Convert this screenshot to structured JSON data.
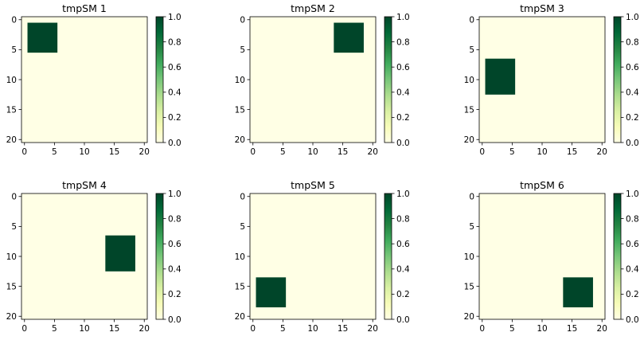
{
  "chart_data": [
    {
      "type": "heatmap",
      "title": "tmpSM 1",
      "grid_size": 21,
      "xlim": [
        -0.5,
        20.5
      ],
      "ylim": [
        20.5,
        -0.5
      ],
      "xticks": [
        0,
        5,
        10,
        15,
        20
      ],
      "yticks": [
        0,
        5,
        10,
        15,
        20
      ],
      "block": {
        "col_start": 1,
        "col_end": 5,
        "row_start": 1,
        "row_end": 5,
        "value": 1
      },
      "background_value": 0,
      "colorbar": {
        "range": [
          0,
          1
        ],
        "ticks": [
          "0.0",
          "0.2",
          "0.4",
          "0.6",
          "0.8",
          "1.0"
        ],
        "colormap": "YlGn"
      }
    },
    {
      "type": "heatmap",
      "title": "tmpSM 2",
      "grid_size": 21,
      "xlim": [
        -0.5,
        20.5
      ],
      "ylim": [
        20.5,
        -0.5
      ],
      "xticks": [
        0,
        5,
        10,
        15,
        20
      ],
      "yticks": [
        0,
        5,
        10,
        15,
        20
      ],
      "block": {
        "col_start": 14,
        "col_end": 18,
        "row_start": 1,
        "row_end": 5,
        "value": 1
      },
      "background_value": 0,
      "colorbar": {
        "range": [
          0,
          1
        ],
        "ticks": [
          "0.0",
          "0.2",
          "0.4",
          "0.6",
          "0.8",
          "1.0"
        ],
        "colormap": "YlGn"
      }
    },
    {
      "type": "heatmap",
      "title": "tmpSM 3",
      "grid_size": 21,
      "xlim": [
        -0.5,
        20.5
      ],
      "ylim": [
        20.5,
        -0.5
      ],
      "xticks": [
        0,
        5,
        10,
        15,
        20
      ],
      "yticks": [
        0,
        5,
        10,
        15,
        20
      ],
      "block": {
        "col_start": 1,
        "col_end": 5,
        "row_start": 7,
        "row_end": 12,
        "value": 1
      },
      "background_value": 0,
      "colorbar": {
        "range": [
          0,
          1
        ],
        "ticks": [
          "0.0",
          "0.2",
          "0.4",
          "0.6",
          "0.8",
          "1.0"
        ],
        "colormap": "YlGn"
      }
    },
    {
      "type": "heatmap",
      "title": "tmpSM 4",
      "grid_size": 21,
      "xlim": [
        -0.5,
        20.5
      ],
      "ylim": [
        20.5,
        -0.5
      ],
      "xticks": [
        0,
        5,
        10,
        15,
        20
      ],
      "yticks": [
        0,
        5,
        10,
        15,
        20
      ],
      "block": {
        "col_start": 14,
        "col_end": 18,
        "row_start": 7,
        "row_end": 12,
        "value": 1
      },
      "background_value": 0,
      "colorbar": {
        "range": [
          0,
          1
        ],
        "ticks": [
          "0.0",
          "0.2",
          "0.4",
          "0.6",
          "0.8",
          "1.0"
        ],
        "colormap": "YlGn"
      }
    },
    {
      "type": "heatmap",
      "title": "tmpSM 5",
      "grid_size": 21,
      "xlim": [
        -0.5,
        20.5
      ],
      "ylim": [
        20.5,
        -0.5
      ],
      "xticks": [
        0,
        5,
        10,
        15,
        20
      ],
      "yticks": [
        0,
        5,
        10,
        15,
        20
      ],
      "block": {
        "col_start": 1,
        "col_end": 5,
        "row_start": 14,
        "row_end": 18,
        "value": 1
      },
      "background_value": 0,
      "colorbar": {
        "range": [
          0,
          1
        ],
        "ticks": [
          "0.0",
          "0.2",
          "0.4",
          "0.6",
          "0.8",
          "1.0"
        ],
        "colormap": "YlGn"
      }
    },
    {
      "type": "heatmap",
      "title": "tmpSM 6",
      "grid_size": 21,
      "xlim": [
        -0.5,
        20.5
      ],
      "ylim": [
        20.5,
        -0.5
      ],
      "xticks": [
        0,
        5,
        10,
        15,
        20
      ],
      "yticks": [
        0,
        5,
        10,
        15,
        20
      ],
      "block": {
        "col_start": 14,
        "col_end": 18,
        "row_start": 14,
        "row_end": 18,
        "value": 1
      },
      "background_value": 0,
      "colorbar": {
        "range": [
          0,
          1
        ],
        "ticks": [
          "0.0",
          "0.2",
          "0.4",
          "0.6",
          "0.8",
          "1.0"
        ],
        "colormap": "YlGn"
      }
    }
  ],
  "colors": {
    "low": "#ffffe5",
    "mid": "#78c679",
    "high": "#004529"
  }
}
